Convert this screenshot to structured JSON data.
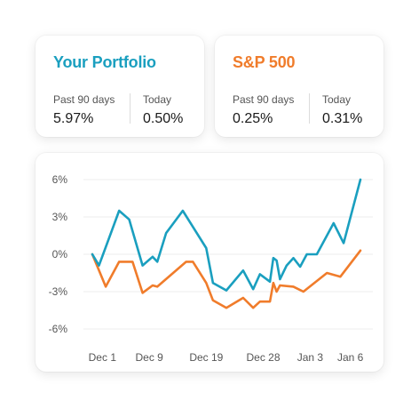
{
  "cards": [
    {
      "title": "Your Portfolio",
      "color": "#1a9fbf",
      "stats": [
        {
          "label": "Past 90 days",
          "value": "5.97%"
        },
        {
          "label": "Today",
          "value": "0.50%"
        }
      ]
    },
    {
      "title": "S&P 500",
      "color": "#f07c2b",
      "stats": [
        {
          "label": "Past 90 days",
          "value": "0.25%"
        },
        {
          "label": "Today",
          "value": "0.31%"
        }
      ]
    }
  ],
  "chart_data": {
    "type": "line",
    "x_ticks": [
      {
        "label": "Dec 1",
        "x": 1.5
      },
      {
        "label": "Dec 9",
        "x": 8.5
      },
      {
        "label": "Dec 19",
        "x": 17
      },
      {
        "label": "Dec 28",
        "x": 25.5
      },
      {
        "label": "Jan 3",
        "x": 32.5
      },
      {
        "label": "Jan 6",
        "x": 38.5
      }
    ],
    "y_ticks": [
      {
        "label": "6%",
        "value": 6
      },
      {
        "label": "3%",
        "value": 3
      },
      {
        "label": "0%",
        "value": 0
      },
      {
        "label": "-3%",
        "value": -3
      },
      {
        "label": "-6%",
        "value": -6
      }
    ],
    "ylim": [
      -6,
      6
    ],
    "xlim": [
      0,
      40
    ],
    "series": [
      {
        "color": "#1a9fbf",
        "points": [
          [
            0,
            0
          ],
          [
            1,
            -0.9
          ],
          [
            4,
            3.5
          ],
          [
            5.5,
            2.8
          ],
          [
            7.5,
            -0.9
          ],
          [
            9,
            -0.2
          ],
          [
            9.7,
            -0.6
          ],
          [
            11,
            1.7
          ],
          [
            13.5,
            3.5
          ],
          [
            17,
            0.5
          ],
          [
            18,
            -2.3
          ],
          [
            20,
            -2.9
          ],
          [
            22.5,
            -1.3
          ],
          [
            24,
            -2.8
          ],
          [
            25,
            -1.6
          ],
          [
            26.5,
            -2.2
          ],
          [
            27,
            -0.3
          ],
          [
            27.5,
            -0.5
          ],
          [
            28,
            -2.0
          ],
          [
            29,
            -0.9
          ],
          [
            30,
            -0.3
          ],
          [
            31,
            -1.0
          ],
          [
            32,
            0
          ],
          [
            33.5,
            0
          ],
          [
            36,
            2.5
          ],
          [
            37.5,
            0.9
          ],
          [
            40,
            6.0
          ]
        ]
      },
      {
        "color": "#f07c2b",
        "points": [
          [
            0,
            0
          ],
          [
            2,
            -2.6
          ],
          [
            4,
            -0.6
          ],
          [
            6,
            -0.6
          ],
          [
            7.5,
            -3.1
          ],
          [
            9,
            -2.5
          ],
          [
            9.7,
            -2.6
          ],
          [
            14,
            -0.6
          ],
          [
            15,
            -0.6
          ],
          [
            17,
            -2.3
          ],
          [
            18,
            -3.7
          ],
          [
            20,
            -4.3
          ],
          [
            22.5,
            -3.5
          ],
          [
            24,
            -4.3
          ],
          [
            25,
            -3.8
          ],
          [
            26.5,
            -3.8
          ],
          [
            27,
            -2.3
          ],
          [
            27.5,
            -3.0
          ],
          [
            28,
            -2.5
          ],
          [
            30,
            -2.6
          ],
          [
            31.5,
            -3.0
          ],
          [
            35,
            -1.5
          ],
          [
            37,
            -1.8
          ],
          [
            40,
            0.3
          ]
        ]
      }
    ]
  }
}
